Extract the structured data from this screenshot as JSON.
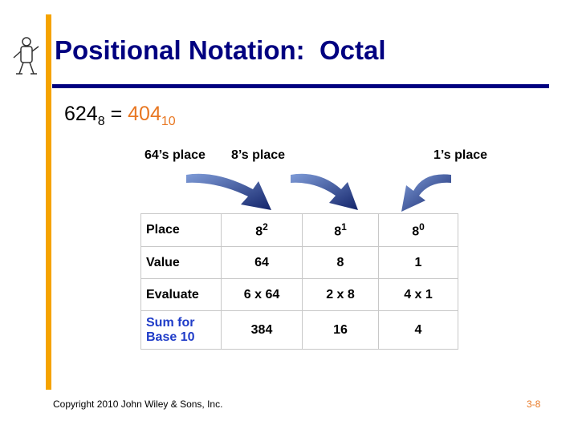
{
  "title": "Positional Notation:  Octal",
  "equation": {
    "left": "624",
    "left_base": "8",
    "equals": "=",
    "right": "404",
    "right_base": "10"
  },
  "place_labels": [
    "64’s place",
    "8’s place",
    "1’s place"
  ],
  "table": {
    "rows": [
      [
        "Place",
        {
          "base": "8",
          "exp": "2"
        },
        {
          "base": "8",
          "exp": "1"
        },
        {
          "base": "8",
          "exp": "0"
        }
      ],
      [
        "Value",
        "64",
        "8",
        "1"
      ],
      [
        "Evaluate",
        "6 x 64",
        "2 x 8",
        "4 x 1"
      ],
      [
        {
          "lines": [
            "Sum for",
            "Base 10"
          ]
        },
        "384",
        "16",
        "4"
      ]
    ]
  },
  "footer": {
    "copyright": "Copyright 2010 John Wiley & Sons, Inc.",
    "page": "3-8"
  }
}
